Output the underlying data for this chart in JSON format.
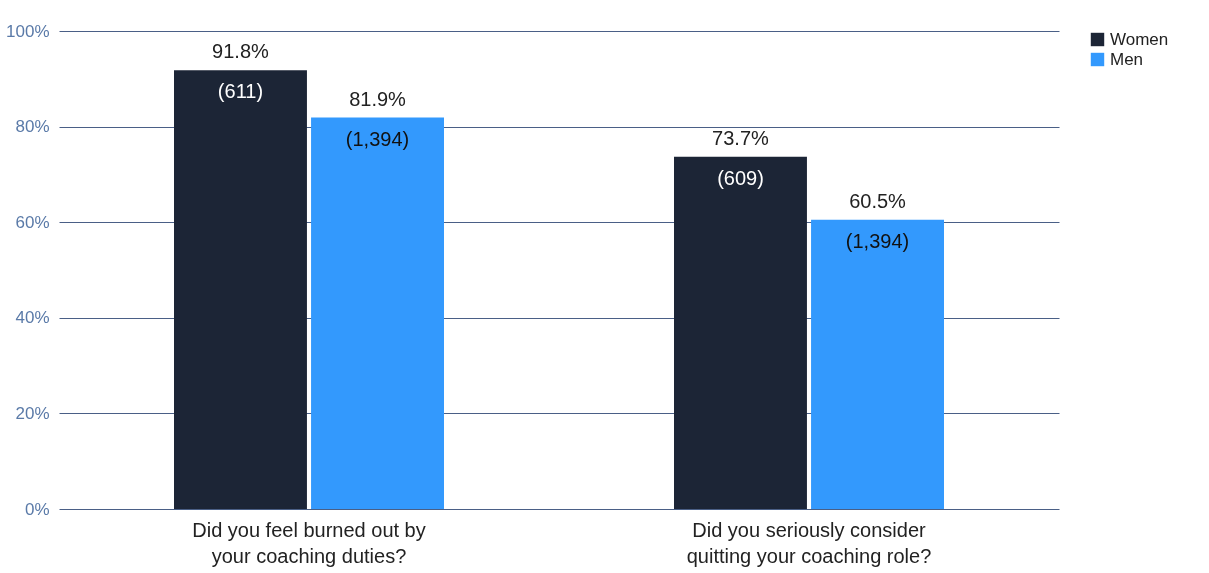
{
  "chart_data": {
    "type": "bar",
    "categories": [
      "Did you feel burned out by your coaching duties?",
      "Did you seriously consider quitting your coaching role?"
    ],
    "series": [
      {
        "name": "Women",
        "color": "#1c2536",
        "values": [
          91.8,
          73.7
        ],
        "value_labels": [
          "91.8%",
          "73.7%"
        ]
      },
      {
        "name": "Men",
        "color": "#3399fd",
        "values": [
          81.9,
          60.5
        ],
        "value_labels": [
          "81.9%",
          "60.5%"
        ]
      }
    ],
    "annotations": [
      {
        "text": "(611)",
        "x": "Did you feel burned out by your coaching duties?",
        "y": 91.8
      },
      {
        "text": "(1,394)",
        "x": "Did you feel burned out by your coaching duties?",
        "y": 81.9
      },
      {
        "text": "(609)",
        "x": "Did you seriously consider quitting your coaching role?",
        "y": 73.7
      },
      {
        "text": "(1,394)",
        "x": "Did you seriously consider quitting your coaching role?",
        "y": 60.5
      }
    ],
    "ylim": [
      0,
      100
    ],
    "yticks": [
      {
        "value": 0,
        "label": "0%"
      },
      {
        "value": 20,
        "label": "20%"
      },
      {
        "value": 40,
        "label": "40%"
      },
      {
        "value": 60,
        "label": "60%"
      },
      {
        "value": 80,
        "label": "80%"
      },
      {
        "value": 100,
        "label": "100%"
      }
    ],
    "grid": "y",
    "legend": "top right"
  }
}
